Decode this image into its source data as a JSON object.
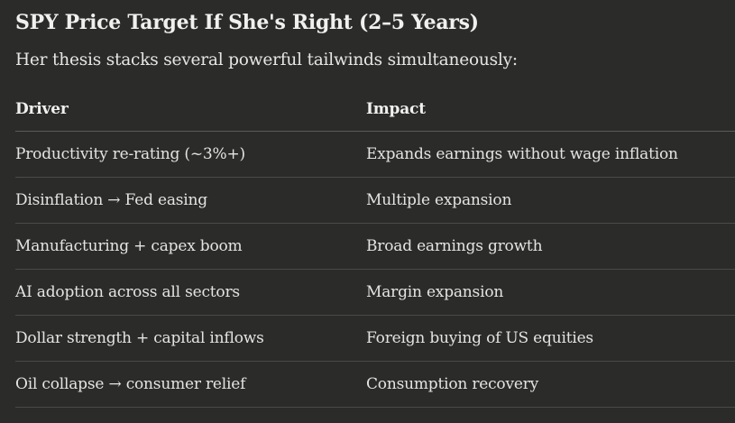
{
  "heading": "SPY Price Target If She's Right (2–5 Years)",
  "intro": "Her thesis stacks several powerful tailwinds simultaneously:",
  "table": {
    "headers": [
      "Driver",
      "Impact"
    ],
    "rows": [
      [
        "Productivity re-rating (~3%+)",
        "Expands earnings without wage inflation"
      ],
      [
        "Disinflation → Fed easing",
        "Multiple expansion"
      ],
      [
        "Manufacturing + capex boom",
        "Broad earnings growth"
      ],
      [
        "AI adoption across all sectors",
        "Margin expansion"
      ],
      [
        "Dollar strength + capital inflows",
        "Foreign buying of US equities"
      ],
      [
        "Oil collapse → consumer relief",
        "Consumption recovery"
      ]
    ]
  }
}
